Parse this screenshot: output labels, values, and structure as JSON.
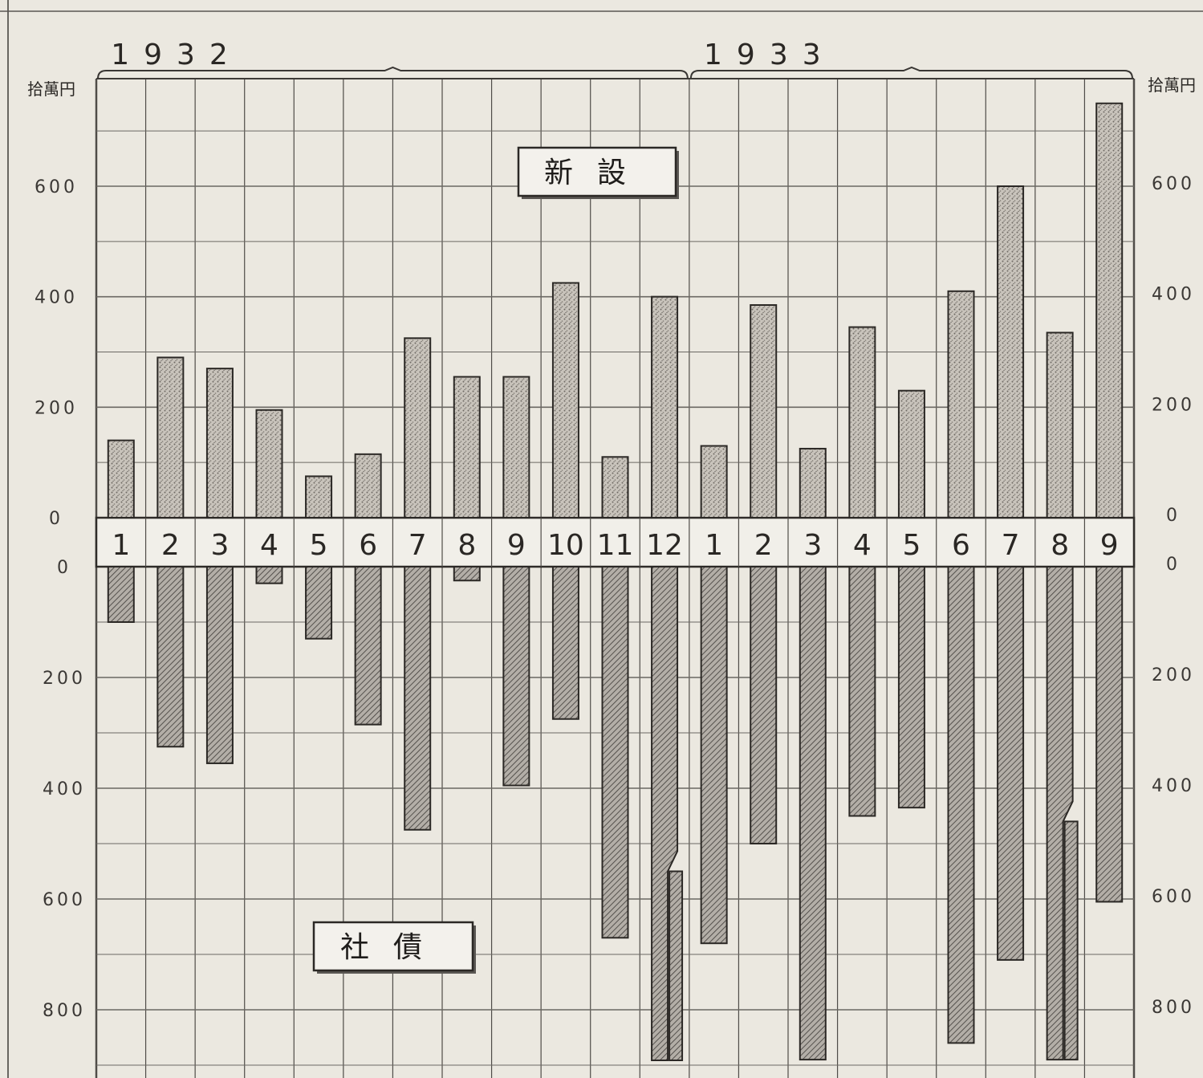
{
  "chart_data": {
    "type": "bar",
    "years": [
      {
        "label": "1932",
        "months": 12
      },
      {
        "label": "1933",
        "months": 9
      }
    ],
    "categories": [
      "1",
      "2",
      "3",
      "4",
      "5",
      "6",
      "7",
      "8",
      "9",
      "10",
      "11",
      "12",
      "1",
      "2",
      "3",
      "4",
      "5",
      "6",
      "7",
      "8",
      "9"
    ],
    "unit_label_left": "拾萬円",
    "unit_label_right": "拾萬円",
    "y_ticks_upper": [
      0,
      200,
      400,
      600
    ],
    "y_ticks_lower": [
      0,
      200,
      400,
      600,
      800
    ],
    "ylim_upper": [
      0,
      750
    ],
    "ylim_lower": [
      0,
      900
    ],
    "series": [
      {
        "name": "新設",
        "direction": "up",
        "values": [
          140,
          290,
          270,
          195,
          75,
          115,
          325,
          255,
          255,
          425,
          110,
          400,
          130,
          385,
          125,
          345,
          230,
          410,
          600,
          335,
          750
        ]
      },
      {
        "name": "社債",
        "direction": "down",
        "values": [
          100,
          325,
          355,
          30,
          130,
          285,
          475,
          25,
          395,
          275,
          670,
          895,
          680,
          500,
          890,
          450,
          435,
          860,
          710,
          890,
          605
        ],
        "break_bars": [
          {
            "index": 11,
            "label_value": 550
          },
          {
            "index": 19,
            "label_value": 460
          }
        ]
      }
    ],
    "grid": true,
    "legend_position": "center-boxes"
  }
}
